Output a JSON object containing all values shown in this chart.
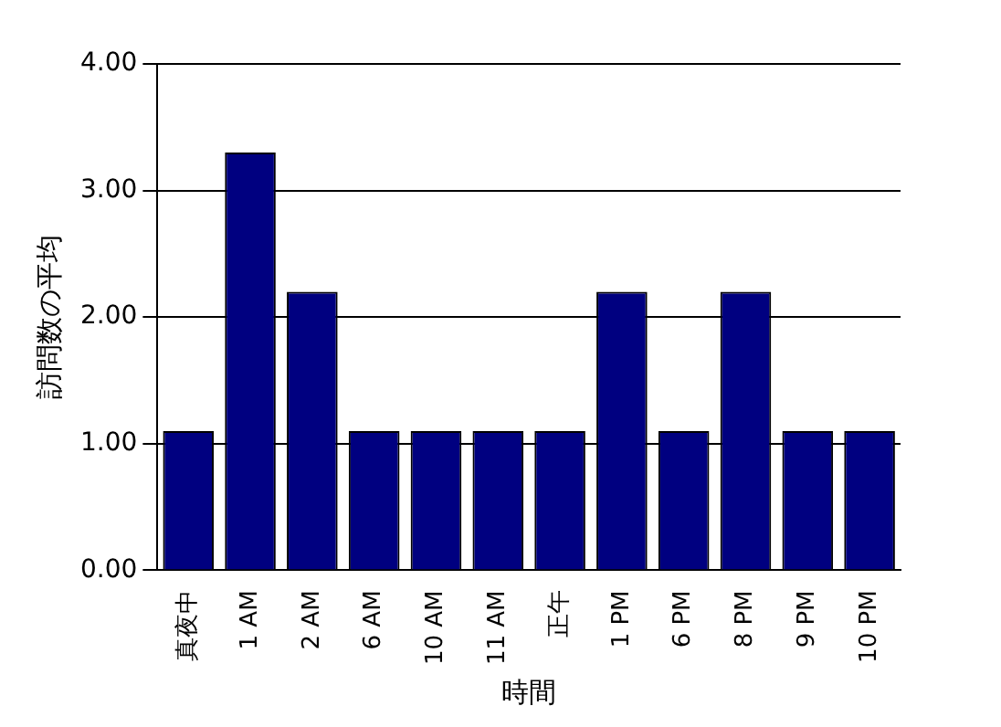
{
  "chart_data": {
    "type": "bar",
    "xlabel": "時間",
    "ylabel": "訪問数の平均",
    "categories": [
      "真夜中",
      "1 AM",
      "2 AM",
      "6 AM",
      "10 AM",
      "11 AM",
      "正午",
      "1 PM",
      "6 PM",
      "8 PM",
      "9 PM",
      "10 PM"
    ],
    "values": [
      1.1,
      3.3,
      2.2,
      1.1,
      1.1,
      1.1,
      1.1,
      2.2,
      1.1,
      2.2,
      1.1,
      1.1
    ],
    "color": "#000080",
    "ylim": [
      0,
      4
    ],
    "yticks": [
      {
        "value": 0,
        "label": "0.00"
      },
      {
        "value": 1,
        "label": "1.00"
      },
      {
        "value": 2,
        "label": "2.00"
      },
      {
        "value": 3,
        "label": "3.00"
      },
      {
        "value": 4,
        "label": "4.00"
      }
    ],
    "grid": "y",
    "legend": false
  }
}
